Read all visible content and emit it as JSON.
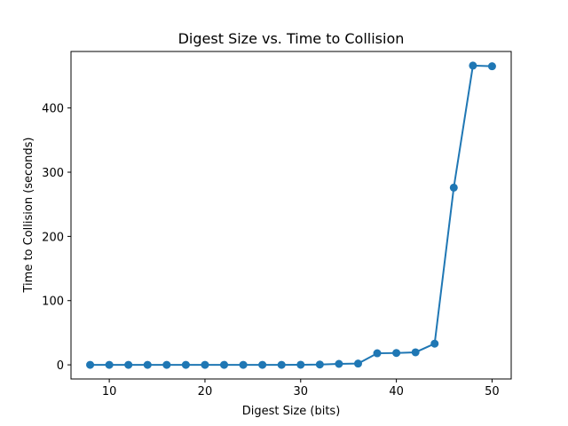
{
  "chart_data": {
    "type": "line",
    "title": "Digest Size vs. Time to Collision",
    "xlabel": "Digest Size (bits)",
    "ylabel": "Time to Collision (seconds)",
    "xlim": [
      6,
      52
    ],
    "ylim": [
      -22,
      488
    ],
    "xticks": [
      10,
      20,
      30,
      40,
      50
    ],
    "yticks": [
      0,
      100,
      200,
      300,
      400
    ],
    "grid": false,
    "series": [
      {
        "color": "#1f77b4",
        "marker": "circle",
        "x": [
          8,
          10,
          12,
          14,
          16,
          18,
          20,
          22,
          24,
          26,
          28,
          30,
          32,
          34,
          36,
          38,
          40,
          42,
          44,
          46,
          48,
          50
        ],
        "y": [
          0,
          0,
          0,
          0,
          0,
          0,
          0,
          0,
          0,
          0,
          0,
          0.2,
          0.5,
          1.5,
          2,
          18,
          18.5,
          19.5,
          33,
          276,
          466,
          465
        ]
      }
    ]
  }
}
